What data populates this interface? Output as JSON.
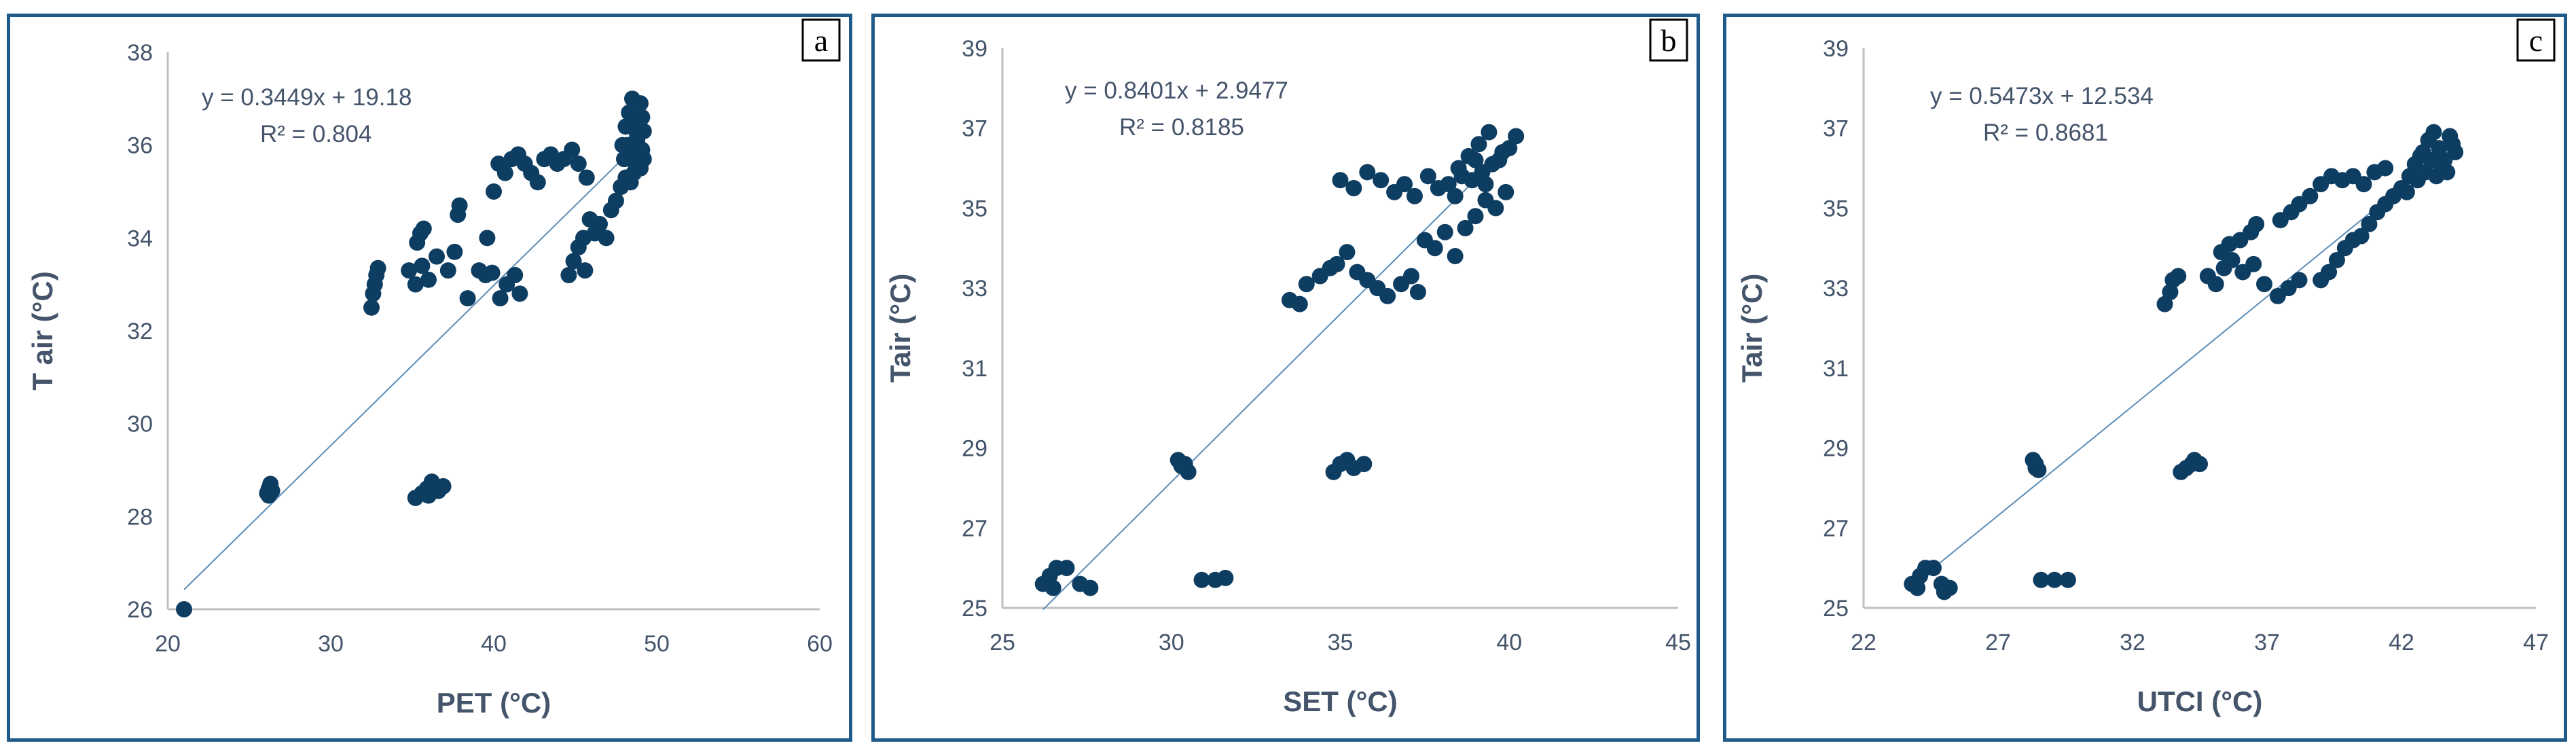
{
  "colors": {
    "point": "#0e3d62",
    "trendline": "#5b8db8",
    "axis": "#bfbfbf",
    "text": "#44546a",
    "panel_border": "#1f5b8a"
  },
  "chart_data": [
    {
      "id": "a",
      "type": "scatter",
      "panel_label": "a",
      "xlabel": "PET (°C)",
      "ylabel": "T air (°C)",
      "xlim": [
        20,
        60
      ],
      "ylim": [
        26,
        38
      ],
      "xticks": [
        "20",
        "30",
        "40",
        "50",
        "60"
      ],
      "yticks": [
        "26",
        "28",
        "30",
        "32",
        "34",
        "36",
        "38"
      ],
      "equation": "y = 0.3449x + 19.18",
      "r_squared": "R² = 0.804",
      "trendline": {
        "slope": 0.3449,
        "intercept": 19.18,
        "x_range": [
          21,
          49.5
        ]
      },
      "points": [
        [
          21.0,
          26.0
        ],
        [
          26.1,
          28.5
        ],
        [
          26.2,
          28.6
        ],
        [
          26.3,
          28.7
        ],
        [
          26.2,
          28.45
        ],
        [
          26.4,
          28.55
        ],
        [
          35.2,
          28.4
        ],
        [
          35.6,
          28.5
        ],
        [
          35.9,
          28.6
        ],
        [
          36.2,
          28.75
        ],
        [
          36.6,
          28.55
        ],
        [
          36.9,
          28.65
        ],
        [
          36.0,
          28.45
        ],
        [
          32.5,
          32.5
        ],
        [
          32.6,
          32.8
        ],
        [
          32.7,
          33.0
        ],
        [
          32.8,
          33.2
        ],
        [
          32.9,
          33.35
        ],
        [
          34.8,
          33.3
        ],
        [
          35.2,
          33.0
        ],
        [
          35.6,
          33.4
        ],
        [
          36.0,
          33.1
        ],
        [
          36.5,
          33.6
        ],
        [
          37.2,
          33.3
        ],
        [
          37.6,
          33.7
        ],
        [
          35.3,
          33.9
        ],
        [
          35.5,
          34.1
        ],
        [
          35.7,
          34.2
        ],
        [
          37.8,
          34.5
        ],
        [
          37.9,
          34.7
        ],
        [
          38.4,
          32.7
        ],
        [
          39.1,
          33.3
        ],
        [
          39.5,
          33.2
        ],
        [
          39.9,
          33.25
        ],
        [
          40.4,
          32.7
        ],
        [
          40.8,
          33.0
        ],
        [
          41.3,
          33.2
        ],
        [
          41.6,
          32.8
        ],
        [
          39.6,
          34.0
        ],
        [
          40.0,
          35.0
        ],
        [
          40.3,
          35.6
        ],
        [
          40.7,
          35.4
        ],
        [
          41.1,
          35.7
        ],
        [
          41.5,
          35.8
        ],
        [
          41.9,
          35.6
        ],
        [
          42.3,
          35.4
        ],
        [
          42.7,
          35.2
        ],
        [
          43.1,
          35.7
        ],
        [
          43.5,
          35.8
        ],
        [
          43.9,
          35.6
        ],
        [
          44.3,
          35.7
        ],
        [
          44.8,
          35.9
        ],
        [
          45.2,
          35.6
        ],
        [
          45.7,
          35.3
        ],
        [
          44.6,
          33.2
        ],
        [
          44.9,
          33.5
        ],
        [
          45.2,
          33.8
        ],
        [
          45.5,
          34.0
        ],
        [
          45.6,
          33.3
        ],
        [
          45.9,
          34.4
        ],
        [
          46.2,
          34.1
        ],
        [
          46.5,
          34.3
        ],
        [
          46.9,
          34.0
        ],
        [
          47.2,
          34.6
        ],
        [
          47.5,
          34.8
        ],
        [
          47.8,
          35.1
        ],
        [
          48.1,
          35.3
        ],
        [
          47.9,
          36.0
        ],
        [
          48.1,
          36.4
        ],
        [
          48.3,
          36.7
        ],
        [
          48.5,
          37.0
        ],
        [
          48.6,
          36.5
        ],
        [
          48.8,
          36.2
        ],
        [
          48.9,
          35.8
        ],
        [
          49.0,
          35.5
        ],
        [
          49.1,
          35.9
        ],
        [
          49.2,
          36.3
        ],
        [
          48.7,
          35.6
        ],
        [
          48.4,
          35.2
        ],
        [
          49.0,
          36.9
        ],
        [
          48.2,
          36.0
        ],
        [
          48.6,
          35.4
        ],
        [
          48.8,
          36.1
        ],
        [
          49.1,
          36.6
        ],
        [
          48.5,
          35.9
        ],
        [
          48.0,
          35.7
        ],
        [
          48.9,
          36.4
        ],
        [
          49.2,
          35.7
        ]
      ]
    },
    {
      "id": "b",
      "type": "scatter",
      "panel_label": "b",
      "xlabel": "SET (°C)",
      "ylabel": "Tair (°C)",
      "xlim": [
        25,
        45
      ],
      "ylim": [
        25,
        39
      ],
      "xticks": [
        "25",
        "30",
        "35",
        "40",
        "45"
      ],
      "yticks": [
        "25",
        "27",
        "29",
        "31",
        "33",
        "35",
        "37",
        "39"
      ],
      "equation": "y = 0.8401x + 2.9477",
      "r_squared": "R² = 0.8185",
      "trendline": {
        "slope": 0.8401,
        "intercept": 2.9477,
        "x_range": [
          26.2,
          40.2
        ]
      },
      "points": [
        [
          26.2,
          25.6
        ],
        [
          26.4,
          25.8
        ],
        [
          26.6,
          26.0
        ],
        [
          26.9,
          26.0
        ],
        [
          26.5,
          25.5
        ],
        [
          27.3,
          25.6
        ],
        [
          27.6,
          25.5
        ],
        [
          30.2,
          28.7
        ],
        [
          30.4,
          28.6
        ],
        [
          30.5,
          28.4
        ],
        [
          30.3,
          28.55
        ],
        [
          30.9,
          25.7
        ],
        [
          31.3,
          25.7
        ],
        [
          31.6,
          25.75
        ],
        [
          34.8,
          28.4
        ],
        [
          35.0,
          28.6
        ],
        [
          35.2,
          28.7
        ],
        [
          35.4,
          28.5
        ],
        [
          35.7,
          28.6
        ],
        [
          33.5,
          32.7
        ],
        [
          33.8,
          32.6
        ],
        [
          34.0,
          33.1
        ],
        [
          34.4,
          33.3
        ],
        [
          34.7,
          33.5
        ],
        [
          34.9,
          33.6
        ],
        [
          35.2,
          33.9
        ],
        [
          35.5,
          33.4
        ],
        [
          35.8,
          33.2
        ],
        [
          36.1,
          33.0
        ],
        [
          36.4,
          32.8
        ],
        [
          36.8,
          33.1
        ],
        [
          37.1,
          33.3
        ],
        [
          37.3,
          32.9
        ],
        [
          35.0,
          35.7
        ],
        [
          35.4,
          35.5
        ],
        [
          35.8,
          35.9
        ],
        [
          36.2,
          35.7
        ],
        [
          36.6,
          35.4
        ],
        [
          36.9,
          35.6
        ],
        [
          37.2,
          35.3
        ],
        [
          37.6,
          35.8
        ],
        [
          37.9,
          35.5
        ],
        [
          37.5,
          34.2
        ],
        [
          37.8,
          34.0
        ],
        [
          38.1,
          34.4
        ],
        [
          38.4,
          33.8
        ],
        [
          38.7,
          34.5
        ],
        [
          39.0,
          34.8
        ],
        [
          39.3,
          35.2
        ],
        [
          39.6,
          35.0
        ],
        [
          39.9,
          35.4
        ],
        [
          38.2,
          35.6
        ],
        [
          38.5,
          36.0
        ],
        [
          38.8,
          36.3
        ],
        [
          39.1,
          36.6
        ],
        [
          39.4,
          36.9
        ],
        [
          39.7,
          36.2
        ],
        [
          40.0,
          36.5
        ],
        [
          40.2,
          36.8
        ],
        [
          39.2,
          35.9
        ],
        [
          38.9,
          35.7
        ],
        [
          39.5,
          36.1
        ],
        [
          39.8,
          36.4
        ],
        [
          38.6,
          35.8
        ],
        [
          39.0,
          36.2
        ],
        [
          39.3,
          35.6
        ],
        [
          38.4,
          35.3
        ]
      ]
    },
    {
      "id": "c",
      "type": "scatter",
      "panel_label": "c",
      "xlabel": "UTCI (°C)",
      "ylabel": "Tair (°C)",
      "xlim": [
        22,
        47
      ],
      "ylim": [
        25,
        39
      ],
      "xticks": [
        "22",
        "27",
        "32",
        "37",
        "42",
        "47"
      ],
      "yticks": [
        "25",
        "27",
        "29",
        "31",
        "33",
        "35",
        "37",
        "39"
      ],
      "equation": "y = 0.5473x + 12.534",
      "r_squared": "R² = 0.8681",
      "trendline": {
        "slope": 0.5473,
        "intercept": 12.534,
        "x_range": [
          23.8,
          44.0
        ]
      },
      "points": [
        [
          23.8,
          25.6
        ],
        [
          24.1,
          25.8
        ],
        [
          24.3,
          26.0
        ],
        [
          24.6,
          26.0
        ],
        [
          24.0,
          25.5
        ],
        [
          24.9,
          25.6
        ],
        [
          25.2,
          25.5
        ],
        [
          25.0,
          25.4
        ],
        [
          28.3,
          28.7
        ],
        [
          28.4,
          28.6
        ],
        [
          28.5,
          28.45
        ],
        [
          28.4,
          28.5
        ],
        [
          28.6,
          25.7
        ],
        [
          29.1,
          25.7
        ],
        [
          29.6,
          25.7
        ],
        [
          33.8,
          28.4
        ],
        [
          34.0,
          28.5
        ],
        [
          34.2,
          28.6
        ],
        [
          34.3,
          28.7
        ],
        [
          34.5,
          28.6
        ],
        [
          33.2,
          32.6
        ],
        [
          33.4,
          32.9
        ],
        [
          33.5,
          33.2
        ],
        [
          33.7,
          33.3
        ],
        [
          34.8,
          33.3
        ],
        [
          35.1,
          33.1
        ],
        [
          35.4,
          33.5
        ],
        [
          35.7,
          33.7
        ],
        [
          36.1,
          33.4
        ],
        [
          36.5,
          33.6
        ],
        [
          36.9,
          33.1
        ],
        [
          37.4,
          32.8
        ],
        [
          37.8,
          33.0
        ],
        [
          38.2,
          33.2
        ],
        [
          35.3,
          33.9
        ],
        [
          35.6,
          34.1
        ],
        [
          36.0,
          34.2
        ],
        [
          36.4,
          34.4
        ],
        [
          36.6,
          34.6
        ],
        [
          37.5,
          34.7
        ],
        [
          37.9,
          34.9
        ],
        [
          38.2,
          35.1
        ],
        [
          38.6,
          35.3
        ],
        [
          39.0,
          35.6
        ],
        [
          39.4,
          35.8
        ],
        [
          39.8,
          35.7
        ],
        [
          40.2,
          35.8
        ],
        [
          40.6,
          35.6
        ],
        [
          41.0,
          35.9
        ],
        [
          41.4,
          36.0
        ],
        [
          39.0,
          33.2
        ],
        [
          39.3,
          33.4
        ],
        [
          39.6,
          33.7
        ],
        [
          39.9,
          34.0
        ],
        [
          40.2,
          34.2
        ],
        [
          40.5,
          34.3
        ],
        [
          40.8,
          34.6
        ],
        [
          41.1,
          34.9
        ],
        [
          41.4,
          35.1
        ],
        [
          41.7,
          35.3
        ],
        [
          42.0,
          35.5
        ],
        [
          42.3,
          35.8
        ],
        [
          42.5,
          36.1
        ],
        [
          42.8,
          36.4
        ],
        [
          43.0,
          36.7
        ],
        [
          43.2,
          36.9
        ],
        [
          43.4,
          36.5
        ],
        [
          43.6,
          36.2
        ],
        [
          43.8,
          36.8
        ],
        [
          44.0,
          36.4
        ],
        [
          42.6,
          35.7
        ],
        [
          42.9,
          35.9
        ],
        [
          43.1,
          36.2
        ],
        [
          43.3,
          35.8
        ],
        [
          43.5,
          36.0
        ],
        [
          43.7,
          35.9
        ],
        [
          42.2,
          35.4
        ],
        [
          42.7,
          36.3
        ],
        [
          43.9,
          36.6
        ]
      ]
    }
  ]
}
